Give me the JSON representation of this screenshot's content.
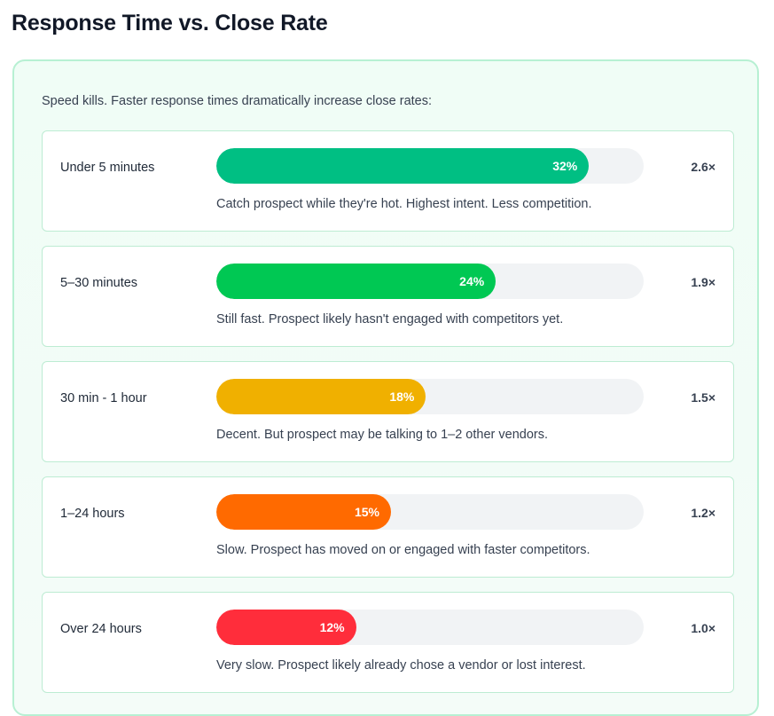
{
  "title": "Response Time vs. Close Rate",
  "intro": "Speed kills. Faster response times dramatically increase close rates:",
  "rows": [
    {
      "label": "Under 5 minutes",
      "percent": 32,
      "percent_label": "32%",
      "multiplier": "2.6×",
      "note": "Catch prospect while they're hot. Highest intent. Less competition.",
      "color": "#00bf83"
    },
    {
      "label": "5–30 minutes",
      "percent": 24,
      "percent_label": "24%",
      "multiplier": "1.9×",
      "note": "Still fast. Prospect likely hasn't engaged with competitors yet.",
      "color": "#00c853"
    },
    {
      "label": "30 min - 1 hour",
      "percent": 18,
      "percent_label": "18%",
      "multiplier": "1.5×",
      "note": "Decent. But prospect may be talking to 1–2 other vendors.",
      "color": "#f0b000"
    },
    {
      "label": "1–24 hours",
      "percent": 15,
      "percent_label": "15%",
      "multiplier": "1.2×",
      "note": "Slow. Prospect has moved on or engaged with faster competitors.",
      "color": "#ff6a00"
    },
    {
      "label": "Over 24 hours",
      "percent": 12,
      "percent_label": "12%",
      "multiplier": "1.0×",
      "note": "Very slow. Prospect likely already chose a vendor or lost interest.",
      "color": "#ff2d3b"
    }
  ]
}
